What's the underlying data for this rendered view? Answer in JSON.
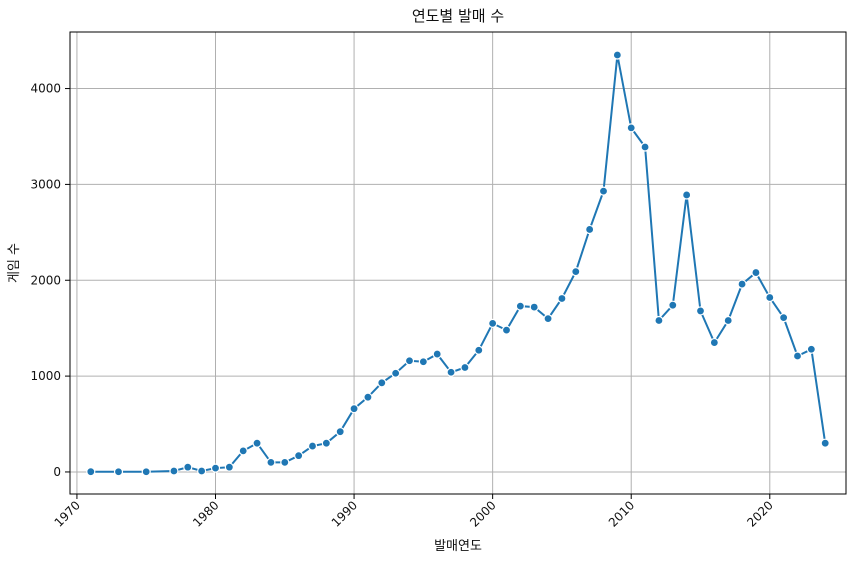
{
  "chart_data": {
    "type": "line",
    "title": "연도별 발매 수",
    "xlabel": "발매연도",
    "ylabel": "게임 수",
    "xlim": [
      1969.5,
      2025.5
    ],
    "ylim": [
      -230,
      4590
    ],
    "x_ticks": [
      "1970",
      "1980",
      "1990",
      "2000",
      "2010",
      "2020"
    ],
    "y_ticks": [
      "0",
      "1000",
      "2000",
      "3000",
      "4000"
    ],
    "grid": true,
    "marker": "circle",
    "color": "#1f77b4",
    "series": [
      {
        "x": [
          1971,
          1973,
          1975,
          1977,
          1978,
          1979,
          1980,
          1981,
          1982,
          1983,
          1984,
          1985,
          1986,
          1987,
          1988,
          1989,
          1990,
          1991,
          1992,
          1993,
          1994,
          1995,
          1996,
          1997,
          1998,
          1999,
          2000,
          2001,
          2002,
          2003,
          2004,
          2005,
          2006,
          2007,
          2008,
          2009,
          2010,
          2011,
          2012,
          2013,
          2014,
          2015,
          2016,
          2017,
          2018,
          2019,
          2020,
          2021,
          2022,
          2023,
          2024
        ],
        "y": [
          3,
          2,
          2,
          10,
          50,
          10,
          40,
          50,
          220,
          300,
          100,
          100,
          170,
          270,
          300,
          420,
          660,
          780,
          930,
          1030,
          1160,
          1150,
          1230,
          1040,
          1090,
          1270,
          1550,
          1480,
          1730,
          1720,
          1600,
          1810,
          2090,
          2530,
          2930,
          4350,
          3590,
          3390,
          1580,
          1740,
          2890,
          1680,
          1350,
          1580,
          1960,
          2080,
          1820,
          1610,
          1210,
          1280,
          300
        ]
      }
    ]
  }
}
